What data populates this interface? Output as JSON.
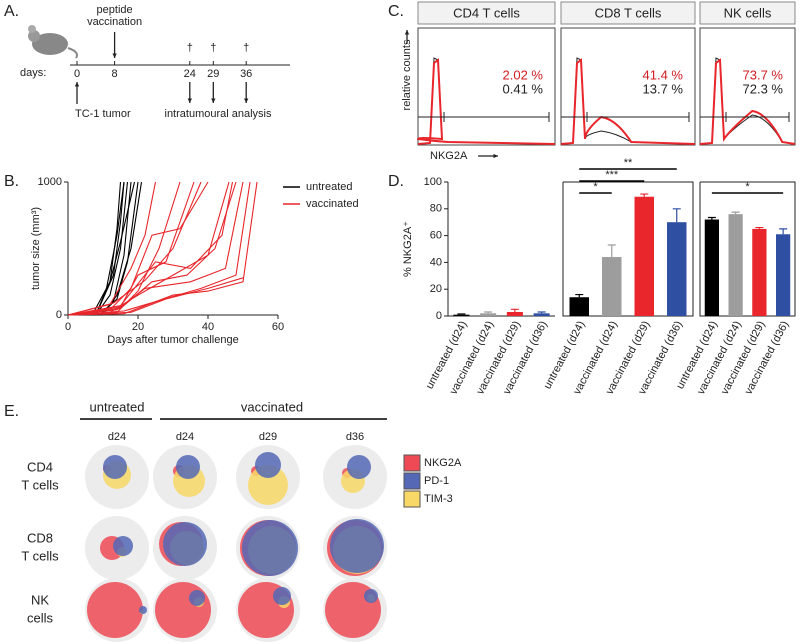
{
  "panel_labels": [
    "A.",
    "B.",
    "C.",
    "D.",
    "E."
  ],
  "timeline": {
    "days_label": "days:",
    "days": [
      0,
      8,
      24,
      29,
      36
    ],
    "vaccination_label": [
      "peptide",
      "vaccination"
    ],
    "death_marker": "†",
    "tumor_label": "TC-1 tumor",
    "analysis_label": "intratumoural analysis"
  },
  "chart_data": [
    {
      "type": "line",
      "xlabel": "Days after tumor challenge",
      "ylabel": "tumor size (mm³)",
      "xlim": [
        0,
        60
      ],
      "xticks": [
        0,
        20,
        40,
        60
      ],
      "ylim": [
        0,
        1000
      ],
      "yticks": [
        0,
        1000
      ],
      "series": [
        {
          "name": "untreated",
          "color": "#000000",
          "curves": [
            {
              "x": [
                0,
                8,
                12,
                15,
                17
              ],
              "values": [
                0,
                2,
                150,
                500,
                1000
              ]
            },
            {
              "x": [
                0,
                8,
                11,
                14,
                16
              ],
              "values": [
                0,
                3,
                200,
                600,
                1000
              ]
            },
            {
              "x": [
                0,
                9,
                13,
                16,
                18
              ],
              "values": [
                0,
                2,
                100,
                450,
                1000
              ]
            },
            {
              "x": [
                0,
                7,
                12,
                15,
                19
              ],
              "values": [
                0,
                4,
                250,
                550,
                1000
              ]
            },
            {
              "x": [
                0,
                9,
                14,
                17,
                20
              ],
              "values": [
                0,
                1,
                120,
                400,
                1000
              ]
            },
            {
              "x": [
                0,
                8,
                13,
                15,
                16
              ],
              "values": [
                0,
                2,
                300,
                700,
                1000
              ]
            },
            {
              "x": [
                0,
                10,
                14,
                18,
                21
              ],
              "values": [
                0,
                3,
                150,
                500,
                1000
              ]
            },
            {
              "x": [
                0,
                8,
                12,
                14,
                15
              ],
              "values": [
                0,
                5,
                250,
                650,
                1000
              ]
            }
          ]
        },
        {
          "name": "vaccinated",
          "color": "#e8262b",
          "curves": [
            {
              "x": [
                0,
                12,
                20,
                30,
                40,
                46
              ],
              "values": [
                0,
                20,
                150,
                300,
                450,
                1000
              ]
            },
            {
              "x": [
                0,
                14,
                22,
                35,
                45,
                50
              ],
              "values": [
                0,
                40,
                200,
                250,
                350,
                1000
              ]
            },
            {
              "x": [
                0,
                15,
                20,
                28,
                36
              ],
              "values": [
                0,
                60,
                300,
                400,
                1000
              ]
            },
            {
              "x": [
                0,
                16,
                25,
                38,
                48,
                52
              ],
              "values": [
                0,
                30,
                100,
                200,
                300,
                1000
              ]
            },
            {
              "x": [
                0,
                12,
                18,
                22,
                25
              ],
              "values": [
                0,
                80,
                350,
                600,
                1000
              ]
            },
            {
              "x": [
                0,
                15,
                24,
                34,
                42,
                48
              ],
              "values": [
                0,
                50,
                250,
                300,
                500,
                1000
              ]
            },
            {
              "x": [
                0,
                14,
                20,
                26,
                32
              ],
              "values": [
                0,
                20,
                180,
                500,
                1000
              ]
            },
            {
              "x": [
                0,
                16,
                30,
                40,
                50,
                54
              ],
              "values": [
                0,
                10,
                150,
                180,
                250,
                1000
              ]
            },
            {
              "x": [
                0,
                13,
                22,
                30,
                38
              ],
              "values": [
                0,
                90,
                260,
                500,
                1000
              ]
            },
            {
              "x": [
                0,
                18,
                28,
                40,
                50
              ],
              "values": [
                0,
                20,
                120,
                200,
                280
              ]
            },
            {
              "x": [
                0,
                15,
                25,
                35,
                44,
                47
              ],
              "values": [
                0,
                70,
                400,
                350,
                600,
                1000
              ]
            },
            {
              "x": [
                0,
                12,
                18,
                24,
                32,
                40
              ],
              "values": [
                0,
                40,
                200,
                600,
                650,
                1000
              ]
            }
          ]
        }
      ]
    },
    {
      "type": "bar",
      "ylabel": "% NKG2A⁺",
      "categories": [
        "untreated (d24)",
        "vaccinated (d24)",
        "vaccinated (d29)",
        "vaccinated (d36)"
      ],
      "values": [
        1,
        2,
        3,
        2
      ],
      "errors": [
        0.5,
        1,
        2,
        1
      ],
      "colors": [
        "#000000",
        "#9d9d9d",
        "#e8262b",
        "#2f4fa3"
      ],
      "ylim": [
        0,
        100
      ],
      "yticks": [
        0,
        20,
        40,
        60,
        80,
        100
      ],
      "significance": []
    },
    {
      "type": "bar",
      "categories": [
        "untreated (d24)",
        "vaccinated (d24)",
        "vaccinated (d29)",
        "vaccinated (d36)"
      ],
      "values": [
        14,
        44,
        89,
        70
      ],
      "errors": [
        2,
        9,
        2,
        10
      ],
      "colors": [
        "#000000",
        "#9d9d9d",
        "#e8262b",
        "#2f4fa3"
      ],
      "ylim": [
        0,
        100
      ],
      "significance": [
        {
          "pair": [
            0,
            1
          ],
          "label": "*"
        },
        {
          "pair": [
            0,
            2
          ],
          "label": "***"
        },
        {
          "pair": [
            0,
            3
          ],
          "label": "**"
        }
      ]
    },
    {
      "type": "bar",
      "categories": [
        "untreated (d24)",
        "vaccinated (d24)",
        "vaccinated (d29)",
        "vaccinated (d36)"
      ],
      "values": [
        72,
        76,
        65,
        61
      ],
      "errors": [
        1.5,
        1.5,
        1,
        4
      ],
      "colors": [
        "#000000",
        "#9d9d9d",
        "#e8262b",
        "#2f4fa3"
      ],
      "ylim": [
        0,
        100
      ],
      "significance": [
        {
          "pair": [
            0,
            3
          ],
          "label": "*"
        }
      ]
    }
  ],
  "histograms": {
    "ylabel": "relative counts",
    "xlabel": "NKG2A",
    "panels": [
      {
        "title": "CD4 T cells",
        "labels": [
          "2.02 %",
          "0.41 %"
        ]
      },
      {
        "title": "CD8 T cells",
        "labels": [
          "41.4 %",
          "13.7 %"
        ]
      },
      {
        "title": "NK cells",
        "labels": [
          "73.7 %",
          "72.3 %"
        ]
      }
    ]
  },
  "venn": {
    "groups": [
      "untreated",
      "vaccinated"
    ],
    "columns": [
      "d24",
      "d24",
      "d29",
      "d36"
    ],
    "rows": [
      [
        "CD4",
        "T cells"
      ],
      [
        "CD8",
        "T cells"
      ],
      [
        "NK",
        "cells"
      ]
    ],
    "legend": [
      {
        "name": "NKG2A",
        "color": "#ee4a55"
      },
      {
        "name": "PD-1",
        "color": "#5468b5"
      },
      {
        "name": "TIM-3",
        "color": "#f8d866"
      }
    ]
  }
}
